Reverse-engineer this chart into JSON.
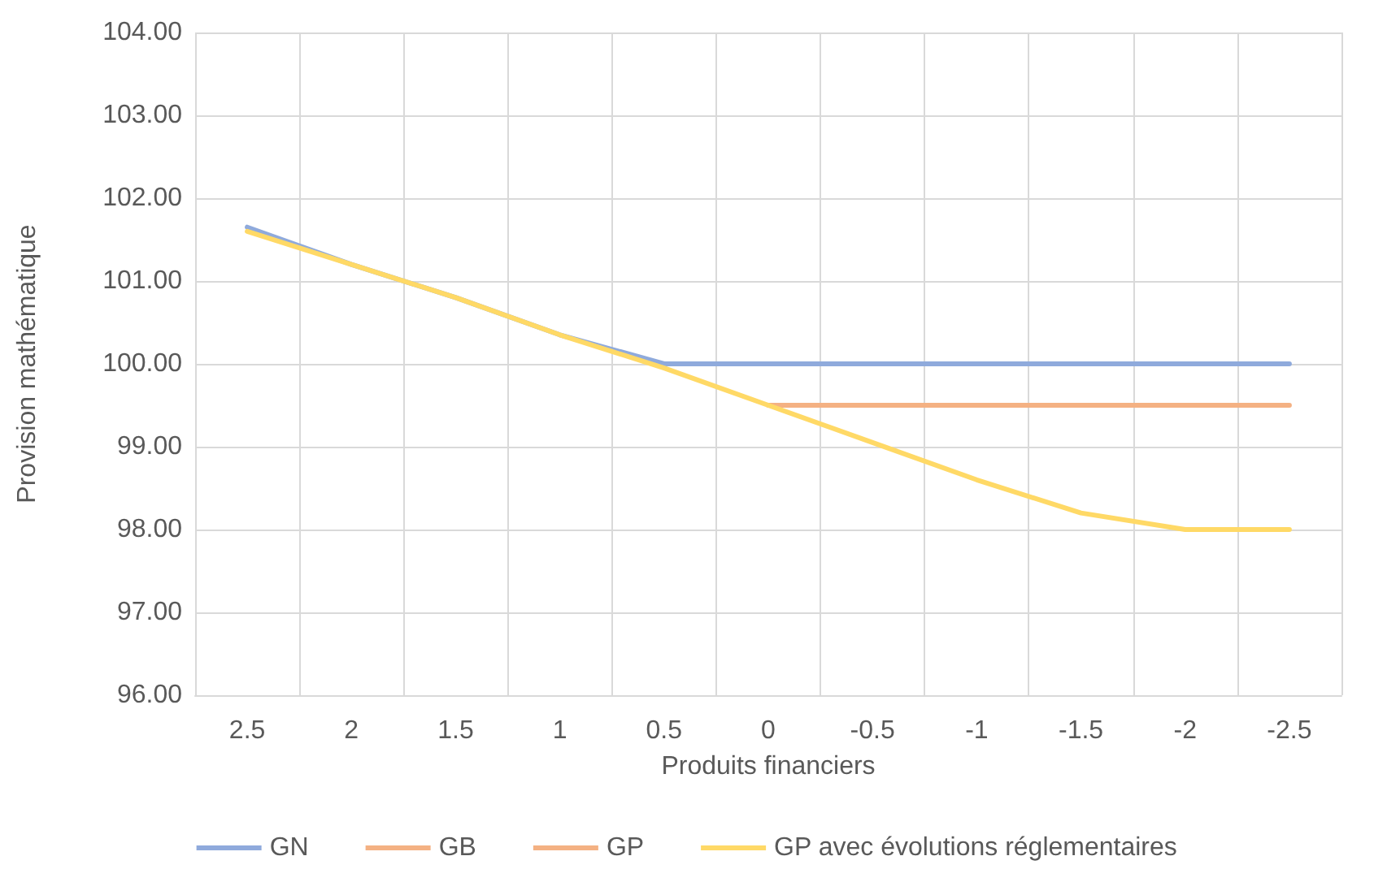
{
  "chart_data": {
    "type": "line",
    "xlabel": "Produits financiers",
    "ylabel": "Provision mathématique",
    "categories": [
      "2.5",
      "2",
      "1.5",
      "1",
      "0.5",
      "0",
      "-0.5",
      "-1",
      "-1.5",
      "-2",
      "-2.5"
    ],
    "series": [
      {
        "name": "GN",
        "color": "#8faadc",
        "values": [
          101.65,
          101.2,
          100.8,
          100.35,
          100.0,
          100.0,
          100.0,
          100.0,
          100.0,
          100.0,
          100.0
        ]
      },
      {
        "name": "GB",
        "color": "#f4b183",
        "values": [
          null,
          null,
          null,
          null,
          null,
          null,
          null,
          null,
          null,
          null,
          null
        ]
      },
      {
        "name": "GP",
        "color": "#f4b183",
        "values": [
          null,
          null,
          null,
          null,
          null,
          99.5,
          99.5,
          99.5,
          99.5,
          99.5,
          99.5
        ]
      },
      {
        "name": "GP avec évolutions réglementaires",
        "color": "#ffd966",
        "values": [
          101.6,
          101.2,
          100.8,
          100.35,
          99.95,
          99.5,
          99.05,
          98.6,
          98.2,
          98.0,
          98.0
        ]
      }
    ],
    "ylim": [
      96,
      104
    ],
    "yticks": [
      {
        "value": 96,
        "label": "96.00"
      },
      {
        "value": 97,
        "label": "97.00"
      },
      {
        "value": 98,
        "label": "98.00"
      },
      {
        "value": 99,
        "label": "99.00"
      },
      {
        "value": 100,
        "label": "100.00"
      },
      {
        "value": 101,
        "label": "101.00"
      },
      {
        "value": 102,
        "label": "102.00"
      },
      {
        "value": 103,
        "label": "103.00"
      },
      {
        "value": 104,
        "label": "104.00"
      }
    ],
    "grid": true,
    "legend": "bottom",
    "marker": "none",
    "line_style": "solid"
  }
}
